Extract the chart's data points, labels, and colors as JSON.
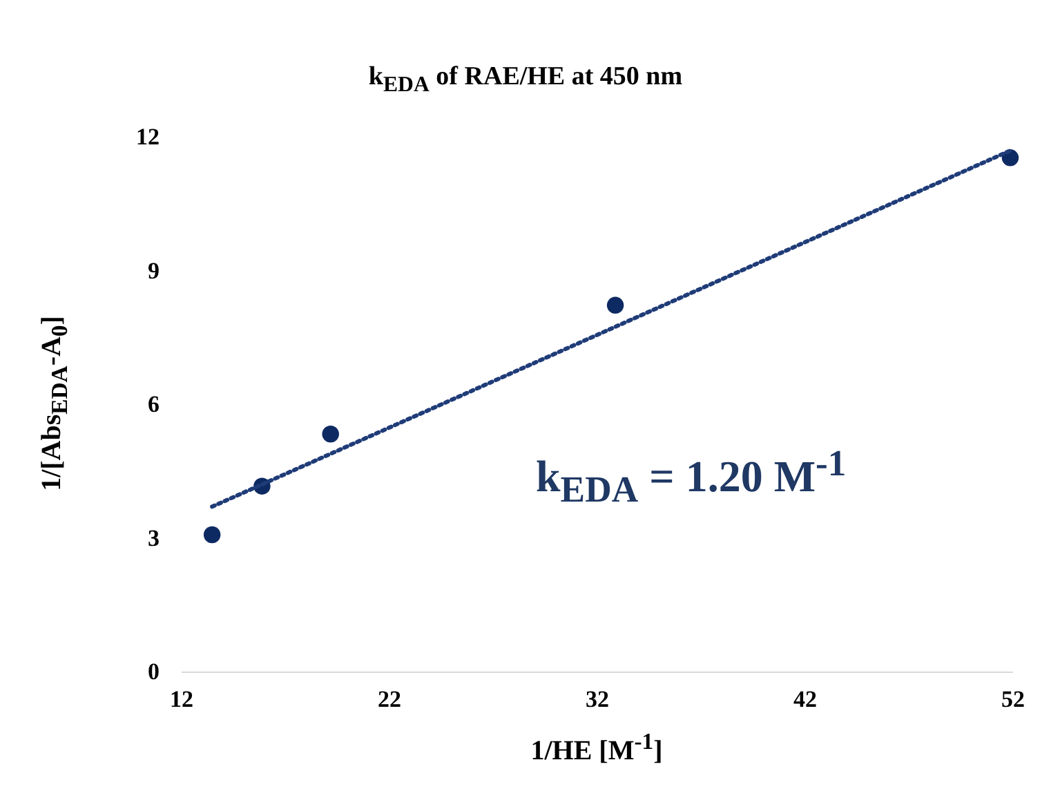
{
  "chart_data": {
    "type": "scatter",
    "title": "k$_{EDA}$ of RAE/HE at 450 nm",
    "xlabel": "1/HE [M$^{-1}$]",
    "ylabel": "1/[Abs$_{EDA}$-A$_{0}$]",
    "annotations": [
      "k$_{EDA}$ = 1.20 M$^{-1}$"
    ],
    "x": [
      13.5,
      15.9,
      19.2,
      32.9,
      51.9
    ],
    "series": [
      {
        "color": "#0e2a62",
        "values": [
          3.07,
          4.16,
          5.33,
          8.22,
          11.53
        ]
      },
      {
        "type": "line",
        "color": "#1f3c78",
        "line_style": "dotted",
        "marker": "none",
        "x": [
          13.5,
          51.9
        ],
        "values": [
          3.7,
          11.69
        ]
      }
    ],
    "marker": "circle",
    "xlim": [
      12,
      52
    ],
    "xticks": [
      12,
      22,
      32,
      42,
      52
    ],
    "ylim": [
      0,
      12
    ],
    "yticks": [
      0,
      3,
      6,
      9,
      12
    ],
    "grid": false
  }
}
